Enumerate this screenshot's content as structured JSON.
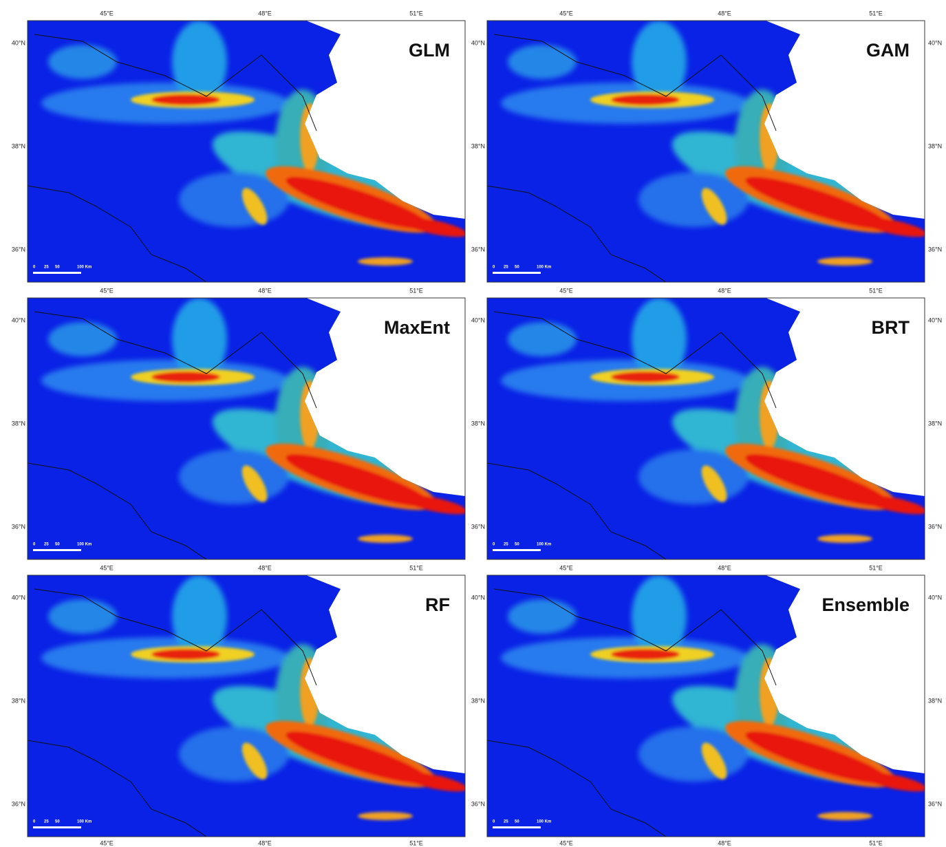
{
  "panels": [
    {
      "title": "GLM"
    },
    {
      "title": "GAM"
    },
    {
      "title": "MaxEnt"
    },
    {
      "title": "BRT"
    },
    {
      "title": "RF"
    },
    {
      "title": "Ensemble"
    }
  ],
  "lon_labels": [
    "45°E",
    "48°E",
    "51°E"
  ],
  "lat_labels": [
    "40°N",
    "38°N",
    "36°N"
  ],
  "scale_labels": [
    "0",
    "25",
    "50",
    "100 Km"
  ]
}
